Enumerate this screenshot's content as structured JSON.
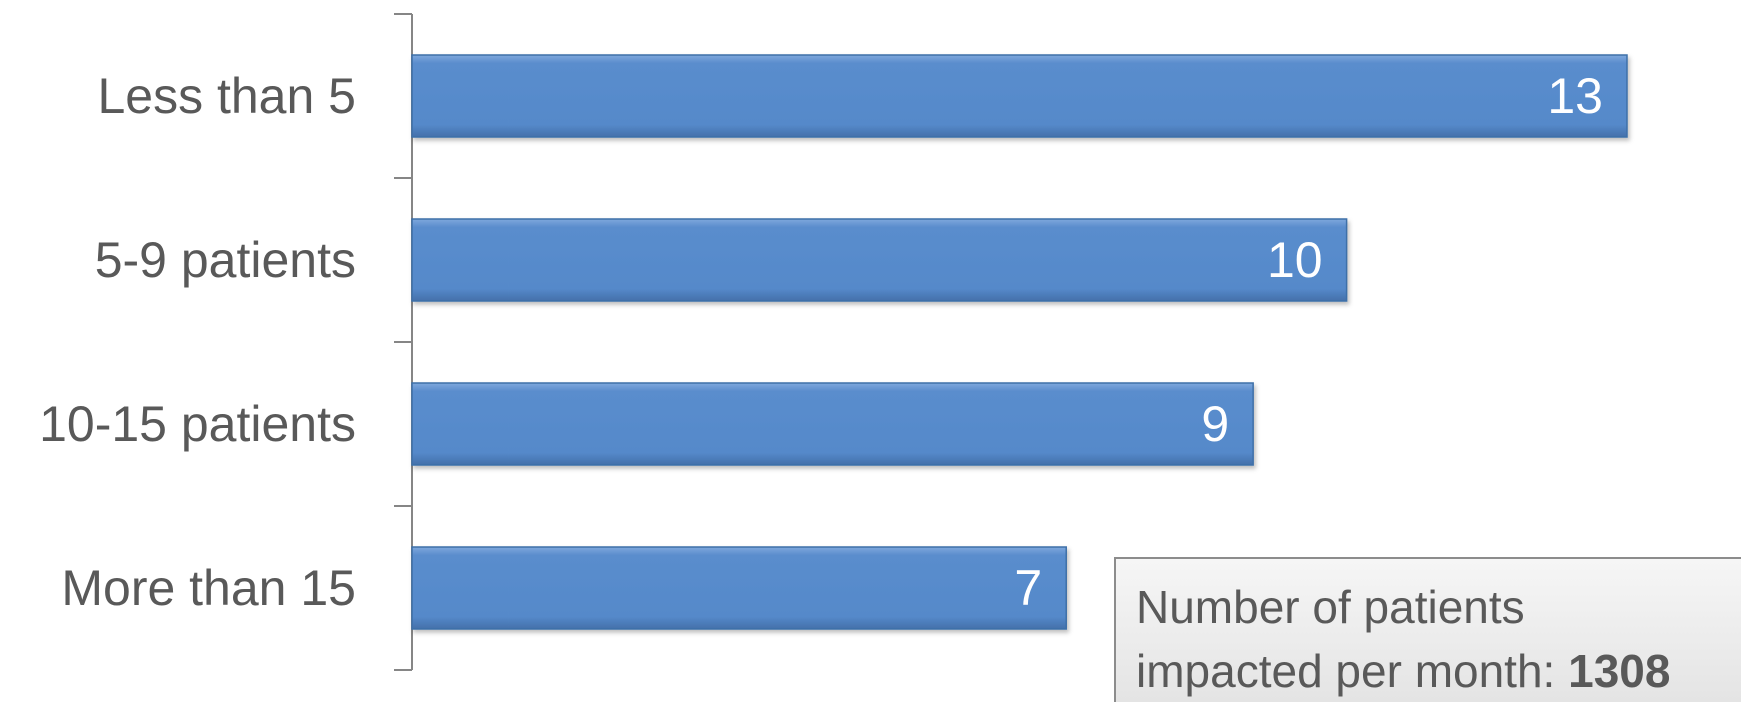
{
  "chart_data": {
    "type": "bar",
    "orientation": "horizontal",
    "categories": [
      "Less than 5",
      "5-9 patients",
      "10-15 patients",
      "More than 15"
    ],
    "values": [
      13,
      10,
      9,
      7
    ],
    "data_labels": [
      "13",
      "10",
      "9",
      "7"
    ],
    "title": "",
    "xlabel": "",
    "ylabel": "",
    "xlim": [
      0,
      13
    ],
    "grid": false,
    "legend": "none",
    "bar_color": "#5589CA",
    "bar_edge_color": "#3E6FA8"
  },
  "annotation": {
    "line1": "Number of patients",
    "line2_prefix": "impacted per month: ",
    "line2_value": "1308"
  }
}
